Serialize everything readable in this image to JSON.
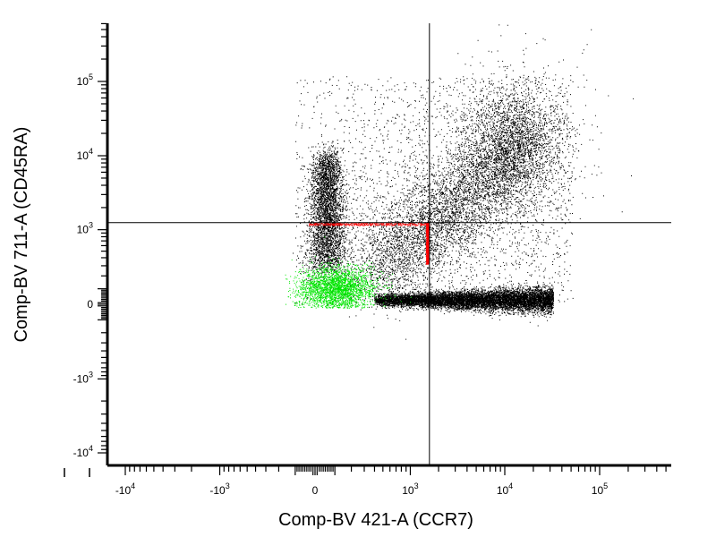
{
  "chart_data": {
    "type": "scatter",
    "title": "",
    "xlabel": "Comp-BV 421-A (CCR7)",
    "ylabel": "Comp-BV 711-A (CD45RA)",
    "x_scale": "biexponential",
    "y_scale": "biexponential",
    "xlim": [
      -16000,
      200000
    ],
    "ylim": [
      -16000,
      200000
    ],
    "x_tick_labels": [
      {
        "value": -10000,
        "label": "-10",
        "exp": "4"
      },
      {
        "value": -1000,
        "label": "-10",
        "exp": "3"
      },
      {
        "value": 0,
        "label": "0",
        "exp": ""
      },
      {
        "value": 1000,
        "label": "10",
        "exp": "3"
      },
      {
        "value": 10000,
        "label": "10",
        "exp": "4"
      },
      {
        "value": 100000,
        "label": "10",
        "exp": "5"
      }
    ],
    "y_tick_labels": [
      {
        "value": 100000,
        "label": "10",
        "exp": "5"
      },
      {
        "value": 10000,
        "label": "10",
        "exp": "4"
      },
      {
        "value": 1000,
        "label": "10",
        "exp": "3"
      },
      {
        "value": 0,
        "label": "0",
        "exp": ""
      },
      {
        "value": -1000,
        "label": "-10",
        "exp": "3"
      },
      {
        "value": -10000,
        "label": "-10",
        "exp": "4"
      }
    ],
    "quadrant_gate": {
      "x": 1600,
      "y": 1250
    },
    "grid": false,
    "legend": "none",
    "populations": [
      {
        "center_x": 13000,
        "center_y": 11000,
        "color": "#000000",
        "density": "high"
      },
      {
        "center_x": 400,
        "center_y": 4500,
        "color": "#000000",
        "density": "medium"
      },
      {
        "center_x": 6000,
        "center_y": 0,
        "color": "#000000",
        "density": "high"
      },
      {
        "center_x": 500,
        "center_y": 100,
        "color": "#00e600",
        "density": "high",
        "x_range": [
          -1000,
          1600
        ],
        "y_range": [
          -50,
          1250
        ]
      }
    ],
    "colors": {
      "dots": "#000000",
      "gated": "#00e600",
      "gate_edge": "#ff0000",
      "axis": "#000000"
    }
  }
}
